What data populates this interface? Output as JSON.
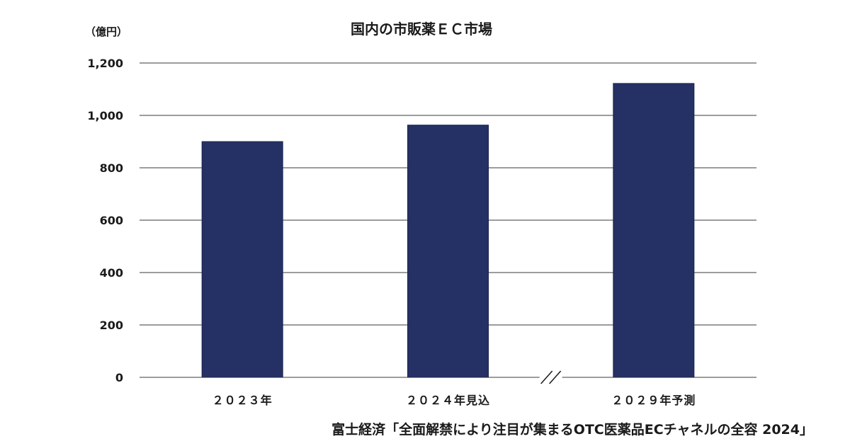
{
  "chart_data": {
    "type": "bar",
    "title": "国内の市販薬ＥＣ市場",
    "unit_label": "（億円）",
    "ylabel": "",
    "xlabel": "",
    "categories": [
      "２０２３年",
      "２０２４年見込",
      "２０２９年予測"
    ],
    "values": [
      900,
      963,
      1122
    ],
    "ylim": [
      0,
      1200
    ],
    "yticks": [
      0,
      200,
      400,
      600,
      800,
      1000,
      1200
    ],
    "ytick_labels": [
      "0",
      "200",
      "400",
      "600",
      "800",
      "1,000",
      "1,200"
    ],
    "grid": true,
    "legend": "none",
    "axis_break_between": [
      1,
      2
    ],
    "bar_color": "#253164",
    "grid_color": "#3a3a3a",
    "source": "富士経済「全面解禁により注目が集まるOTC医薬品ECチャネルの全容 2024」"
  }
}
